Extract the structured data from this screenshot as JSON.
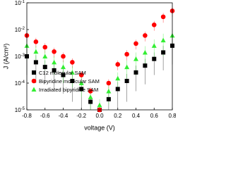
{
  "chart_data": {
    "type": "scatter",
    "xlabel": "voltage (V)",
    "ylabel": "J (A/cm²)",
    "x": [
      -0.8,
      -0.7,
      -0.6,
      -0.5,
      -0.4,
      -0.3,
      -0.2,
      -0.1,
      0,
      0.1,
      0.2,
      0.3,
      0.4,
      0.5,
      0.6,
      0.7,
      0.8
    ],
    "series": [
      {
        "name": "C12 molecular SAM",
        "color": "#000000",
        "marker": "square",
        "values": [
          0.001,
          0.0006,
          0.0004,
          0.0003,
          0.0002,
          0.00012,
          6e-05,
          2e-05,
          1e-05,
          2.5e-05,
          6e-05,
          0.00012,
          0.00025,
          0.00045,
          0.0008,
          0.0014,
          0.0025
        ],
        "errors": [
          0.0008,
          0.0005,
          0.0003,
          0.00024,
          0.00016,
          0.0001,
          5e-05,
          1.6e-05,
          8e-06,
          2e-05,
          5e-05,
          0.0001,
          0.0002,
          0.00036,
          0.0006,
          0.0011,
          0.002
        ]
      },
      {
        "name": "Bipyridine molecular SAM",
        "color": "#ff0000",
        "marker": "circle",
        "values": [
          0.006,
          0.0035,
          0.0022,
          0.0015,
          0.001,
          0.0006,
          0.0002,
          5e-05,
          1e-05,
          0.0001,
          0.0005,
          0.0012,
          0.003,
          0.006,
          0.015,
          0.03,
          0.05
        ],
        "errors": [
          0.0024,
          0.0014,
          0.0009,
          0.0006,
          0.0004,
          0.00024,
          8e-05,
          2e-05,
          4e-06,
          4e-05,
          0.0002,
          0.0005,
          0.0012,
          0.0024,
          0.006,
          0.012,
          0.02
        ]
      },
      {
        "name": "Irradiated bipyridine SAM",
        "color": "#33ee33",
        "marker": "triangle",
        "values": [
          0.0025,
          0.0015,
          0.001,
          0.0006,
          0.0004,
          0.00025,
          0.0001,
          3e-05,
          1.5e-05,
          5e-05,
          0.00015,
          0.0004,
          0.0008,
          0.0014,
          0.0025,
          0.004,
          0.006
        ],
        "errors": [
          0.0018,
          0.001,
          0.0007,
          0.0004,
          0.0003,
          0.00018,
          7e-05,
          2e-05,
          1e-05,
          3.5e-05,
          0.0001,
          0.0003,
          0.0006,
          0.001,
          0.0018,
          0.003,
          0.004
        ]
      }
    ],
    "xlim": [
      -0.8,
      0.8
    ],
    "xticks": [
      -0.8,
      -0.6,
      -0.4,
      -0.2,
      {
        "value": 0,
        "label": "0.0"
      },
      0.2,
      0.4,
      0.6,
      0.8
    ],
    "ylim": [
      1e-05,
      0.1
    ],
    "ylog": true,
    "yticks": [
      {
        "value": 1e-05,
        "label": "10",
        "exponent": "-5"
      },
      {
        "value": 0.0001,
        "label": "10",
        "exponent": "-4"
      },
      {
        "value": 0.001,
        "label": "10",
        "exponent": "-3"
      },
      {
        "value": 0.01,
        "label": "10",
        "exponent": "-2"
      },
      {
        "value": 0.1,
        "label": "10",
        "exponent": "-1"
      }
    ],
    "legend": "lower left"
  }
}
